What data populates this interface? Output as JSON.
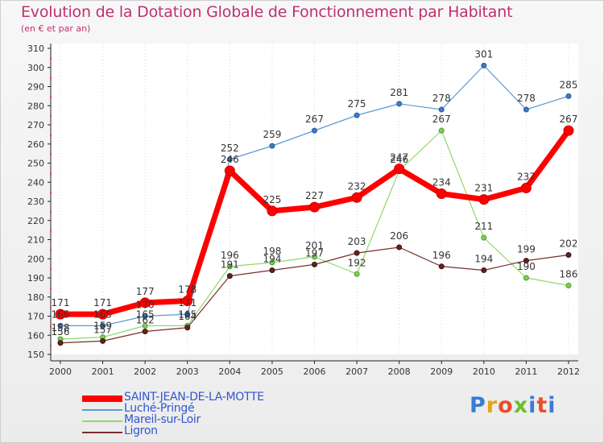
{
  "title": "Evolution de la Dotation Globale de Fonctionnement par Habitant",
  "subtitle": "(en € et par an)",
  "logo_text": "Proxiti",
  "chart_data": {
    "type": "line",
    "title": "Evolution de la Dotation Globale de Fonctionnement par Habitant",
    "subtitle": "(en € et par an)",
    "xlabel": "",
    "ylabel": "",
    "x": [
      "2000",
      "2001",
      "2002",
      "2003",
      "2004",
      "2005",
      "2006",
      "2007",
      "2008",
      "2009",
      "2010",
      "2011",
      "2012"
    ],
    "ylim": [
      150,
      310
    ],
    "yticks": [
      150,
      160,
      170,
      180,
      190,
      200,
      210,
      220,
      230,
      240,
      250,
      260,
      270,
      280,
      290,
      300,
      310
    ],
    "grid": "vertical dotted",
    "legend_position": "bottom-left",
    "series": [
      {
        "name": "SAINT-JEAN-DE-LA-MOTTE",
        "color": "#ff0000",
        "values": [
          171,
          171,
          177,
          178,
          246,
          225,
          227,
          232,
          247,
          234,
          231,
          237,
          267
        ],
        "labels": [
          "171",
          "171",
          "177",
          "178",
          "246",
          "225",
          "227",
          "232",
          "247",
          "234",
          "231",
          "237",
          "267"
        ]
      },
      {
        "name": "Luché-Pringé",
        "color": "#5b9ad5",
        "values": [
          165,
          165,
          170,
          171,
          252,
          259,
          267,
          275,
          281,
          278,
          301,
          278,
          285
        ],
        "labels": [
          "165",
          "165",
          "170",
          "171",
          "252",
          "259",
          "267",
          "275",
          "281",
          "278",
          "301",
          "278",
          "285"
        ]
      },
      {
        "name": "Mareil-sur-Loir",
        "color": "#8fd96b",
        "values": [
          158,
          159,
          165,
          165,
          196,
          198,
          201,
          192,
          246,
          267,
          211,
          190,
          186
        ],
        "labels": [
          "158",
          "159",
          "165",
          "165",
          "196",
          "198",
          "201",
          "192",
          "246",
          "267",
          "211",
          "190",
          "186"
        ]
      },
      {
        "name": "Ligron",
        "color": "#7a2e2e",
        "values": [
          156,
          157,
          162,
          164,
          191,
          194,
          197,
          203,
          206,
          196,
          194,
          199,
          202
        ],
        "labels": [
          "156",
          "157",
          "162",
          "164",
          "191",
          "194",
          "197",
          "203",
          "206",
          "196",
          "194",
          "199",
          "202"
        ]
      }
    ]
  }
}
